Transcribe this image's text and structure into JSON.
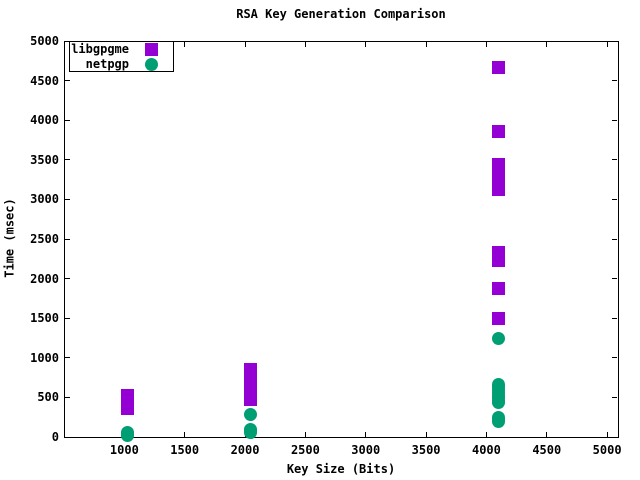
{
  "chart_data": {
    "type": "scatter",
    "title": "RSA Key Generation Comparison",
    "xlabel": "Key Size (Bits)",
    "ylabel": "Time (msec)",
    "xlim": [
      500,
      5090
    ],
    "ylim": [
      0,
      5000
    ],
    "x_ticks": [
      1000,
      1500,
      2000,
      2500,
      3000,
      3500,
      4000,
      4500,
      5000
    ],
    "y_ticks": [
      0,
      500,
      1000,
      1500,
      2000,
      2500,
      3000,
      3500,
      4000,
      4500,
      5000
    ],
    "grid": false,
    "legend_position": "top-left-inside",
    "background_color": "#ffffff",
    "border_color": "#000000",
    "series": [
      {
        "name": "libgpgme",
        "marker": "square",
        "color": "#9400d3",
        "points": [
          [
            1024,
            355
          ],
          [
            1024,
            400
          ],
          [
            1024,
            445
          ],
          [
            1024,
            490
          ],
          [
            1024,
            525
          ],
          [
            2048,
            475
          ],
          [
            2048,
            530
          ],
          [
            2048,
            585
          ],
          [
            2048,
            640
          ],
          [
            2048,
            695
          ],
          [
            2048,
            750
          ],
          [
            2048,
            805
          ],
          [
            2048,
            850
          ],
          [
            4096,
            1500
          ],
          [
            4096,
            1880
          ],
          [
            4096,
            2230
          ],
          [
            4096,
            2280
          ],
          [
            4096,
            2330
          ],
          [
            4096,
            3130
          ],
          [
            4096,
            3210
          ],
          [
            4096,
            3290
          ],
          [
            4096,
            3370
          ],
          [
            4096,
            3440
          ],
          [
            4096,
            3860
          ],
          [
            4096,
            4660
          ]
        ]
      },
      {
        "name": "netpgp",
        "marker": "circle",
        "color": "#009e73",
        "points": [
          [
            1024,
            25
          ],
          [
            1024,
            40
          ],
          [
            1024,
            55
          ],
          [
            2048,
            60
          ],
          [
            2048,
            80
          ],
          [
            2048,
            100
          ],
          [
            2048,
            280
          ],
          [
            4096,
            195
          ],
          [
            4096,
            220
          ],
          [
            4096,
            250
          ],
          [
            4096,
            430
          ],
          [
            4096,
            460
          ],
          [
            4096,
            495
          ],
          [
            4096,
            530
          ],
          [
            4096,
            565
          ],
          [
            4096,
            600
          ],
          [
            4096,
            635
          ],
          [
            4096,
            665
          ],
          [
            4096,
            1250
          ]
        ]
      }
    ]
  }
}
